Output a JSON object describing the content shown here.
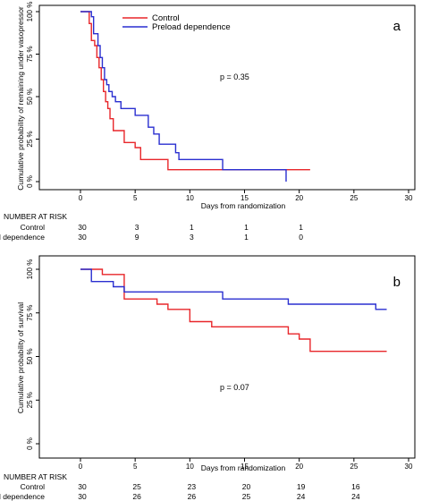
{
  "chart_data": [
    {
      "type": "line",
      "panel_label": "a",
      "xlabel": "Days from randomization",
      "ylabel": "Cumulative probability of remaining under vasopressor",
      "xlim": [
        0,
        30
      ],
      "ylim": [
        0,
        100
      ],
      "x_ticks": [
        "0",
        "5",
        "10",
        "15",
        "20",
        "25",
        "30"
      ],
      "y_ticks": [
        "0 %",
        "25 %",
        "50 %",
        "75 %",
        "100 %"
      ],
      "annotation": "p = 0.35",
      "legend_position": "top-left",
      "series": [
        {
          "name": "Control",
          "color": "#e8262a",
          "steps": [
            [
              0,
              100
            ],
            [
              0.8,
              93
            ],
            [
              1.0,
              83
            ],
            [
              1.3,
              80
            ],
            [
              1.5,
              73
            ],
            [
              1.7,
              67
            ],
            [
              1.9,
              60
            ],
            [
              2.1,
              53
            ],
            [
              2.3,
              47
            ],
            [
              2.5,
              43
            ],
            [
              2.7,
              37
            ],
            [
              3.0,
              30
            ],
            [
              4.0,
              23
            ],
            [
              5.0,
              20
            ],
            [
              5.5,
              13
            ],
            [
              8.0,
              7
            ],
            [
              21.0,
              7
            ]
          ]
        },
        {
          "name": "Preload dependence",
          "color": "#2a2fd0",
          "steps": [
            [
              0,
              100
            ],
            [
              1.0,
              97
            ],
            [
              1.2,
              87
            ],
            [
              1.6,
              80
            ],
            [
              1.8,
              73
            ],
            [
              2.0,
              67
            ],
            [
              2.2,
              60
            ],
            [
              2.4,
              57
            ],
            [
              2.6,
              53
            ],
            [
              2.9,
              50
            ],
            [
              3.2,
              47
            ],
            [
              3.7,
              43
            ],
            [
              5.0,
              39
            ],
            [
              6.2,
              32
            ],
            [
              6.7,
              28
            ],
            [
              7.2,
              22
            ],
            [
              8.7,
              17
            ],
            [
              9.0,
              13
            ],
            [
              13.0,
              7
            ],
            [
              18.8,
              7
            ],
            [
              18.8,
              0
            ]
          ]
        }
      ],
      "risk_table": {
        "header": "NUMBER AT RISK",
        "times": [
          0,
          5,
          10,
          15,
          20
        ],
        "rows": [
          {
            "label": "Control",
            "values": [
              "30",
              "3",
              "1",
              "1",
              "1"
            ]
          },
          {
            "label": "Preload dependence",
            "values": [
              "30",
              "9",
              "3",
              "1",
              "0"
            ]
          }
        ]
      }
    },
    {
      "type": "line",
      "panel_label": "b",
      "xlabel": "Days from randomization",
      "ylabel": "Cumulative probability of survival",
      "xlim": [
        0,
        30
      ],
      "ylim": [
        0,
        100
      ],
      "x_ticks": [
        "0",
        "5",
        "10",
        "15",
        "20",
        "25",
        "30"
      ],
      "y_ticks": [
        "0 %",
        "25 %",
        "50 %",
        "75 %",
        "100 %"
      ],
      "annotation": "p = 0.07",
      "series": [
        {
          "name": "Control",
          "color": "#e8262a",
          "steps": [
            [
              0,
              100
            ],
            [
              2,
              97
            ],
            [
              4,
              83
            ],
            [
              7,
              80
            ],
            [
              8,
              77
            ],
            [
              10,
              70
            ],
            [
              12,
              67
            ],
            [
              19,
              63
            ],
            [
              20,
              60
            ],
            [
              21,
              53
            ],
            [
              28,
              53
            ]
          ]
        },
        {
          "name": "Preload dependence",
          "color": "#2a2fd0",
          "steps": [
            [
              0,
              100
            ],
            [
              1,
              93
            ],
            [
              3,
              90
            ],
            [
              4,
              87
            ],
            [
              13,
              83
            ],
            [
              19,
              80
            ],
            [
              27,
              77
            ],
            [
              28,
              77
            ]
          ]
        }
      ],
      "risk_table": {
        "header": "NUMBER AT RISK",
        "times": [
          0,
          5,
          10,
          15,
          20,
          25
        ],
        "rows": [
          {
            "label": "Control",
            "values": [
              "30",
              "25",
              "23",
              "20",
              "19",
              "16"
            ]
          },
          {
            "label": "Preload dependence",
            "values": [
              "30",
              "26",
              "26",
              "25",
              "24",
              "24"
            ]
          }
        ]
      }
    }
  ]
}
